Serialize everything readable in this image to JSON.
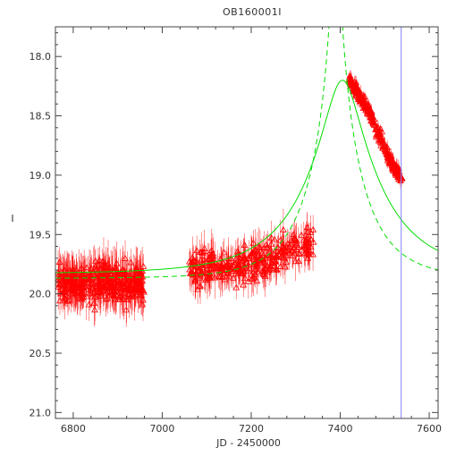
{
  "chart_data": {
    "type": "scatter",
    "title": "OB160001I",
    "xlabel": "JD - 2450000",
    "ylabel": "I",
    "xlim": [
      6760,
      7620
    ],
    "ylim": [
      21.05,
      17.75
    ],
    "x_ticks": [
      "6800",
      "7000",
      "7200",
      "7400",
      "7600"
    ],
    "x_tick_values": [
      6800,
      7000,
      7200,
      7400,
      7600
    ],
    "y_ticks": [
      "18.0",
      "18.5",
      "19.0",
      "19.5",
      "20.0",
      "20.5",
      "21.0"
    ],
    "y_tick_values": [
      18.0,
      18.5,
      19.0,
      19.5,
      20.0,
      20.5,
      21.0
    ],
    "grid": false,
    "colors": {
      "points": "#ff0000",
      "model": "#00dd00",
      "marker_line": "#8080ff",
      "axes": "#444444"
    },
    "observation_groups": [
      {
        "x_range": [
          6765,
          6960
        ],
        "mag_center": 19.9,
        "mag_spread": 0.18,
        "count": 380,
        "err": 0.14
      },
      {
        "x_range": [
          7060,
          7340
        ],
        "mag_trend": [
          [
            7060,
            19.8
          ],
          [
            7150,
            19.78
          ],
          [
            7250,
            19.7
          ],
          [
            7340,
            19.55
          ]
        ],
        "mag_spread": 0.16,
        "count": 320,
        "err": 0.12
      },
      {
        "x_range": [
          7420,
          7540
        ],
        "mag_trend": [
          [
            7420,
            18.2
          ],
          [
            7440,
            18.3
          ],
          [
            7470,
            18.5
          ],
          [
            7500,
            18.78
          ],
          [
            7520,
            18.92
          ],
          [
            7540,
            19.05
          ]
        ],
        "mag_spread": 0.06,
        "count": 260,
        "err": 0.05
      }
    ],
    "models": [
      {
        "style": "solid",
        "peak_x": 7405,
        "baseline": 19.83,
        "peak_mag": 18.2,
        "tE": 170
      },
      {
        "style": "dashed",
        "peak_x": 7390,
        "baseline": 19.87,
        "peak_mag": 16.9,
        "tE": 120
      }
    ],
    "vertical_marker_x": 7537
  }
}
